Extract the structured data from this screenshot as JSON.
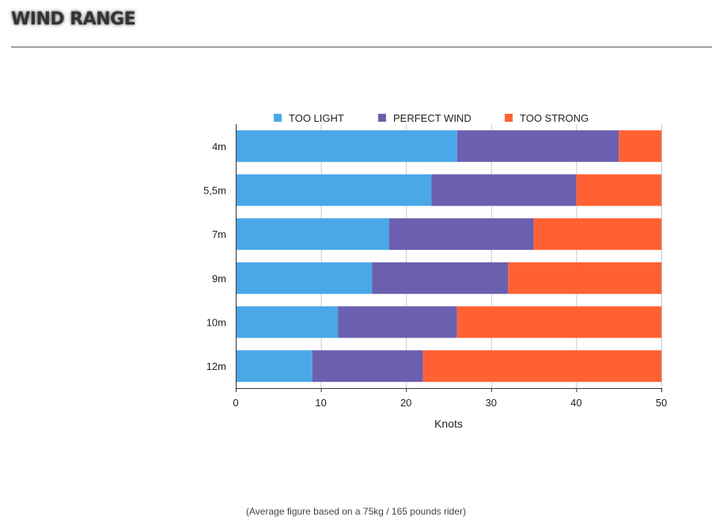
{
  "header": {
    "title": "WIND RANGE"
  },
  "chart_data": {
    "type": "bar",
    "orientation": "horizontal",
    "stacked": true,
    "categories": [
      "4m",
      "5,5m",
      "7m",
      "9m",
      "10m",
      "12m"
    ],
    "series": [
      {
        "name": "TOO LIGHT",
        "color": "#4aa8e8",
        "values": [
          26,
          23,
          18,
          16,
          12,
          9
        ]
      },
      {
        "name": "PERFECT WIND",
        "color": "#6b60b0",
        "values": [
          19,
          17,
          17,
          16,
          14,
          13
        ]
      },
      {
        "name": "TOO STRONG",
        "color": "#ff6133",
        "values": [
          5,
          10,
          15,
          18,
          24,
          28
        ]
      }
    ],
    "xlabel": "Knots",
    "ylabel": "",
    "xlim": [
      0,
      50
    ],
    "xticks": [
      0,
      10,
      20,
      30,
      40,
      50
    ],
    "grid": true,
    "legend_position": "top"
  },
  "footnote": "(Average figure based on a 75kg / 165 pounds rider)"
}
